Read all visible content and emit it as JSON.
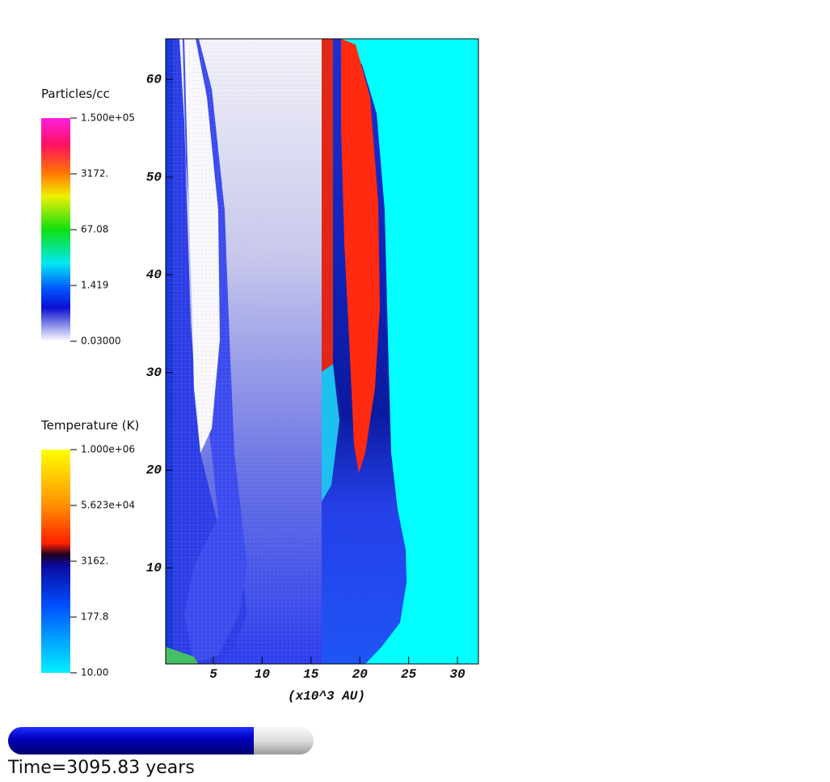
{
  "axes": {
    "xlim": [
      0,
      32
    ],
    "ylim": [
      0,
      64
    ],
    "xticks": [
      5,
      10,
      15,
      20,
      25,
      30
    ],
    "yticks": [
      10,
      20,
      30,
      40,
      50,
      60
    ],
    "xlabel": "(x10^3 AU)"
  },
  "colorbars": [
    {
      "title": "Particles/cc",
      "labels": [
        "1.500e+05",
        "3172.",
        "67.08",
        "1.419",
        "0.03000"
      ]
    },
    {
      "title": "Temperature (K)",
      "labels": [
        "1.000e+06",
        "5.623e+04",
        "3162.",
        "177.8",
        "10.00"
      ]
    }
  ],
  "time_label": "Time=3095.83 years"
}
